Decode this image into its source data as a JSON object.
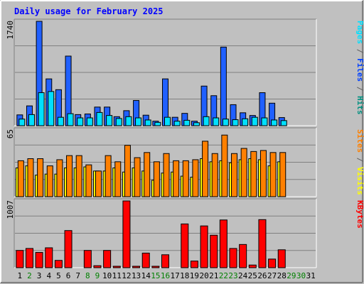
{
  "chart_data": {
    "type": "bar",
    "title": "Daily usage for February 2025",
    "categories": [
      "1",
      "2",
      "3",
      "4",
      "5",
      "6",
      "7",
      "8",
      "9",
      "10",
      "11",
      "12",
      "13",
      "14",
      "15",
      "16",
      "17",
      "18",
      "19",
      "20",
      "21",
      "22",
      "23",
      "24",
      "25",
      "26",
      "27",
      "28",
      "29",
      "30",
      "31"
    ],
    "weekend_days": [
      "2",
      "8",
      "9",
      "15",
      "16",
      "22",
      "23",
      "29",
      "30"
    ],
    "panels": [
      {
        "id": "hits_files_pages",
        "scale_max_label": "1740",
        "ylim": [
          0,
          1740
        ],
        "right_labels": [
          {
            "text": "Pages",
            "color": "#00e0ff"
          },
          {
            "text": " / ",
            "color": "#606060"
          },
          {
            "text": "Files",
            "color": "#0040ff"
          },
          {
            "text": " / ",
            "color": "#606060"
          },
          {
            "text": "Hits",
            "color": "#009080"
          }
        ],
        "series": [
          {
            "name": "Hits",
            "color": "#00a080",
            "values": [
              0,
              0,
              0,
              0,
              0,
              0,
              0,
              0,
              0,
              0,
              0,
              0,
              0,
              0,
              0,
              0,
              0,
              0,
              0,
              0,
              0,
              0,
              0,
              0,
              0,
              0,
              0,
              0,
              0,
              0,
              0
            ]
          },
          {
            "name": "Files",
            "color": "#2060ff",
            "values": [
              180,
              330,
              1740,
              780,
              600,
              1160,
              185,
              195,
              310,
              310,
              150,
              250,
              420,
              175,
              75,
              780,
              140,
              205,
              75,
              660,
              500,
              1310,
              350,
              215,
              170,
              550,
              375,
              135,
              0,
              0,
              0
            ]
          },
          {
            "name": "Pages",
            "color": "#00e0ff",
            "values": [
              110,
              185,
              550,
              570,
              140,
              200,
              130,
              130,
              220,
              170,
              120,
              150,
              130,
              95,
              55,
              140,
              75,
              90,
              50,
              150,
              130,
              110,
              100,
              115,
              140,
              130,
              95,
              85,
              0,
              0,
              0
            ]
          }
        ]
      },
      {
        "id": "visits_sites",
        "scale_max_label": "65",
        "ylim": [
          0,
          65
        ],
        "right_labels": [
          {
            "text": "Sites",
            "color": "#ff8000"
          },
          {
            "text": " / ",
            "color": "#606060"
          },
          {
            "text": "Visits",
            "color": "#ffff00"
          }
        ],
        "series": [
          {
            "name": "Visits",
            "color": "#ffff00",
            "values": [
              28,
              30,
              21,
              22,
              22,
              28,
              28,
              29,
              25,
              25,
              28,
              24,
              28,
              25,
              16,
              23,
              24,
              20,
              19,
              37,
              34,
              35,
              33,
              36,
              37,
              36,
              30,
              34,
              0,
              0,
              0
            ]
          },
          {
            "name": "Sites",
            "color": "#ff8000",
            "values": [
              35,
              37,
              37,
              30,
              36,
              40,
              40,
              31,
              25,
              40,
              34,
              50,
              38,
              43,
              34,
              42,
              35,
              35,
              36,
              54,
              42,
              60,
              42,
              47,
              44,
              45,
              43,
              43,
              0,
              0,
              0
            ]
          }
        ]
      },
      {
        "id": "kbytes",
        "scale_max_label": "1007",
        "ylim": [
          0,
          1007
        ],
        "right_labels": [
          {
            "text": "KBytes",
            "color": "#ff0000"
          }
        ],
        "series": [
          {
            "name": "KBytes",
            "color": "#ff0000",
            "values": [
              260,
              290,
              230,
              300,
              110,
              560,
              0,
              260,
              30,
              260,
              20,
              1007,
              20,
              220,
              20,
              195,
              0,
              660,
              100,
              630,
              490,
              720,
              290,
              350,
              40,
              725,
              130,
              270,
              0,
              0,
              0
            ]
          }
        ]
      }
    ]
  }
}
